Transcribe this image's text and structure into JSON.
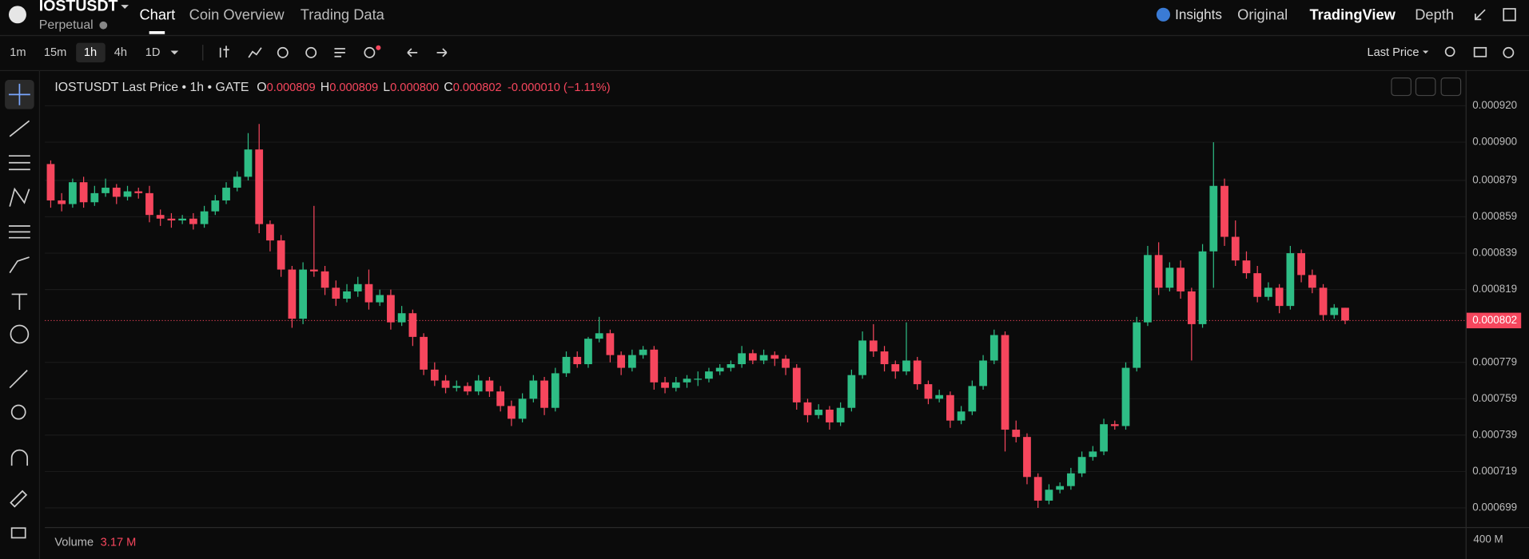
{
  "header": {
    "symbol": "IOSTUSDT",
    "market": "Perpetual",
    "tabs": [
      "Chart",
      "Coin Overview",
      "Trading Data"
    ],
    "views": [
      "Insights",
      "Original",
      "TradingView",
      "Depth"
    ]
  },
  "toolbar": {
    "intervals": [
      "1m",
      "15m",
      "1h",
      "4h",
      "1D"
    ],
    "price_type": "Last Price"
  },
  "chart_data": {
    "type": "candlestick",
    "title": "IOSTUSDT Last Price • 1h • GATE",
    "legend": {
      "labels": [
        "O",
        "H",
        "L",
        "C"
      ],
      "values": [
        "0.000809",
        "0.000809",
        "0.000800",
        "0.000802"
      ],
      "change": "-0.000010 (−1.11%)"
    },
    "last_price_label": "0.000802",
    "color_up": "#2ebd85",
    "color_down": "#f6465d",
    "grid": true,
    "ylim": [
      0.000689,
      0.000938
    ],
    "yticks": [
      {
        "value": 0.00092,
        "label": "0.000920"
      },
      {
        "value": 0.0009,
        "label": "0.000900"
      },
      {
        "value": 0.000879,
        "label": "0.000879"
      },
      {
        "value": 0.000859,
        "label": "0.000859"
      },
      {
        "value": 0.000839,
        "label": "0.000839"
      },
      {
        "value": 0.000819,
        "label": "0.000819"
      },
      {
        "value": 0.000779,
        "label": "0.000779"
      },
      {
        "value": 0.000759,
        "label": "0.000759"
      },
      {
        "value": 0.000739,
        "label": "0.000739"
      },
      {
        "value": 0.000719,
        "label": "0.000719"
      },
      {
        "value": 0.000699,
        "label": "0.000699"
      }
    ],
    "ohlc": [
      [
        0.000888,
        0.00089,
        0.000864,
        0.000868
      ],
      [
        0.000868,
        0.000872,
        0.000862,
        0.000866
      ],
      [
        0.000866,
        0.00088,
        0.000864,
        0.000878
      ],
      [
        0.000878,
        0.000881,
        0.000864,
        0.000867
      ],
      [
        0.000867,
        0.000876,
        0.000865,
        0.000872
      ],
      [
        0.000872,
        0.00088,
        0.00087,
        0.000875
      ],
      [
        0.000875,
        0.000877,
        0.000866,
        0.00087
      ],
      [
        0.00087,
        0.000876,
        0.000868,
        0.000873
      ],
      [
        0.000873,
        0.000875,
        0.000869,
        0.000872
      ],
      [
        0.000872,
        0.000876,
        0.000856,
        0.00086
      ],
      [
        0.00086,
        0.000863,
        0.000854,
        0.000858
      ],
      [
        0.000858,
        0.000861,
        0.000853,
        0.000857
      ],
      [
        0.000857,
        0.00086,
        0.000855,
        0.000858
      ],
      [
        0.000858,
        0.000861,
        0.000852,
        0.000855
      ],
      [
        0.000855,
        0.000865,
        0.000853,
        0.000862
      ],
      [
        0.000862,
        0.000871,
        0.00086,
        0.000868
      ],
      [
        0.000868,
        0.000878,
        0.000866,
        0.000875
      ],
      [
        0.000875,
        0.000884,
        0.000873,
        0.000881
      ],
      [
        0.000881,
        0.000905,
        0.000879,
        0.000896
      ],
      [
        0.000896,
        0.00091,
        0.00085,
        0.000855
      ],
      [
        0.000855,
        0.000857,
        0.00084,
        0.000846
      ],
      [
        0.000846,
        0.000849,
        0.000826,
        0.00083
      ],
      [
        0.00083,
        0.000832,
        0.000798,
        0.000803
      ],
      [
        0.000803,
        0.000834,
        0.0008,
        0.00083
      ],
      [
        0.00083,
        0.000865,
        0.000826,
        0.000829
      ],
      [
        0.000829,
        0.000832,
        0.000816,
        0.00082
      ],
      [
        0.00082,
        0.000824,
        0.00081,
        0.000814
      ],
      [
        0.000814,
        0.000822,
        0.000812,
        0.000818
      ],
      [
        0.000818,
        0.000826,
        0.000815,
        0.000822
      ],
      [
        0.000822,
        0.00083,
        0.000808,
        0.000812
      ],
      [
        0.000812,
        0.000819,
        0.00081,
        0.000816
      ],
      [
        0.000816,
        0.000819,
        0.000797,
        0.000801
      ],
      [
        0.000801,
        0.00081,
        0.000799,
        0.000806
      ],
      [
        0.000806,
        0.000808,
        0.000788,
        0.000793
      ],
      [
        0.000793,
        0.000795,
        0.000772,
        0.000775
      ],
      [
        0.000775,
        0.000779,
        0.000766,
        0.000769
      ],
      [
        0.000769,
        0.000772,
        0.000762,
        0.000765
      ],
      [
        0.000765,
        0.000769,
        0.000763,
        0.000766
      ],
      [
        0.000766,
        0.000768,
        0.000761,
        0.000763
      ],
      [
        0.000763,
        0.000772,
        0.000761,
        0.000769
      ],
      [
        0.000769,
        0.000771,
        0.00076,
        0.000763
      ],
      [
        0.000763,
        0.000766,
        0.000752,
        0.000755
      ],
      [
        0.000755,
        0.000758,
        0.000744,
        0.000748
      ],
      [
        0.000748,
        0.000762,
        0.000746,
        0.000759
      ],
      [
        0.000759,
        0.000772,
        0.000757,
        0.000769
      ],
      [
        0.000769,
        0.000771,
        0.00075,
        0.000754
      ],
      [
        0.000754,
        0.000776,
        0.000752,
        0.000773
      ],
      [
        0.000773,
        0.000785,
        0.000771,
        0.000782
      ],
      [
        0.000782,
        0.000785,
        0.000776,
        0.000778
      ],
      [
        0.000778,
        0.000793,
        0.000776,
        0.000792
      ],
      [
        0.000792,
        0.000804,
        0.00079,
        0.000795
      ],
      [
        0.000795,
        0.000797,
        0.000779,
        0.000783
      ],
      [
        0.000783,
        0.000785,
        0.000772,
        0.000776
      ],
      [
        0.000776,
        0.000786,
        0.000774,
        0.000783
      ],
      [
        0.000783,
        0.000788,
        0.000781,
        0.000786
      ],
      [
        0.000786,
        0.000788,
        0.000764,
        0.000768
      ],
      [
        0.000768,
        0.000771,
        0.000762,
        0.000765
      ],
      [
        0.000765,
        0.000771,
        0.000763,
        0.000768
      ],
      [
        0.000768,
        0.000772,
        0.000765,
        0.00077
      ],
      [
        0.00077,
        0.000774,
        0.000766,
        0.00077
      ],
      [
        0.00077,
        0.000776,
        0.000768,
        0.000774
      ],
      [
        0.000774,
        0.000778,
        0.000772,
        0.000776
      ],
      [
        0.000776,
        0.00078,
        0.000774,
        0.000778
      ],
      [
        0.000778,
        0.000788,
        0.000776,
        0.000784
      ],
      [
        0.000784,
        0.000786,
        0.000778,
        0.00078
      ],
      [
        0.00078,
        0.000786,
        0.000778,
        0.000783
      ],
      [
        0.000783,
        0.000785,
        0.000777,
        0.000781
      ],
      [
        0.000781,
        0.000783,
        0.000772,
        0.000776
      ],
      [
        0.000776,
        0.000778,
        0.000753,
        0.000757
      ],
      [
        0.000757,
        0.000759,
        0.000746,
        0.00075
      ],
      [
        0.00075,
        0.000756,
        0.000748,
        0.000753
      ],
      [
        0.000753,
        0.000755,
        0.000742,
        0.000746
      ],
      [
        0.000746,
        0.000757,
        0.000744,
        0.000754
      ],
      [
        0.000754,
        0.000775,
        0.000752,
        0.000772
      ],
      [
        0.000772,
        0.000796,
        0.00077,
        0.000791
      ],
      [
        0.000791,
        0.0008,
        0.000782,
        0.000785
      ],
      [
        0.000785,
        0.000788,
        0.000774,
        0.000778
      ],
      [
        0.000778,
        0.00078,
        0.00077,
        0.000774
      ],
      [
        0.000774,
        0.000801,
        0.000772,
        0.00078
      ],
      [
        0.00078,
        0.000782,
        0.000764,
        0.000767
      ],
      [
        0.000767,
        0.000769,
        0.000756,
        0.000759
      ],
      [
        0.000759,
        0.000764,
        0.000757,
        0.000761
      ],
      [
        0.000761,
        0.000763,
        0.000743,
        0.000747
      ],
      [
        0.000747,
        0.000755,
        0.000745,
        0.000752
      ],
      [
        0.000752,
        0.000769,
        0.00075,
        0.000766
      ],
      [
        0.000766,
        0.000783,
        0.000764,
        0.00078
      ],
      [
        0.00078,
        0.000797,
        0.000778,
        0.000794
      ],
      [
        0.000794,
        0.000796,
        0.00073,
        0.000742
      ],
      [
        0.000742,
        0.000747,
        0.000735,
        0.000738
      ],
      [
        0.000738,
        0.00074,
        0.000712,
        0.000716
      ],
      [
        0.000716,
        0.000718,
        0.000699,
        0.000703
      ],
      [
        0.000703,
        0.000712,
        0.000701,
        0.000709
      ],
      [
        0.000709,
        0.000713,
        0.000707,
        0.000711
      ],
      [
        0.000711,
        0.000721,
        0.000709,
        0.000718
      ],
      [
        0.000718,
        0.00073,
        0.000716,
        0.000727
      ],
      [
        0.000727,
        0.000733,
        0.000725,
        0.00073
      ],
      [
        0.00073,
        0.000748,
        0.000728,
        0.000745
      ],
      [
        0.000745,
        0.000747,
        0.000742,
        0.000744
      ],
      [
        0.000744,
        0.000779,
        0.000742,
        0.000776
      ],
      [
        0.000776,
        0.000804,
        0.000774,
        0.000801
      ],
      [
        0.000801,
        0.000843,
        0.000799,
        0.000838
      ],
      [
        0.000838,
        0.000845,
        0.000816,
        0.00082
      ],
      [
        0.00082,
        0.000834,
        0.000818,
        0.000831
      ],
      [
        0.000831,
        0.000835,
        0.000814,
        0.000818
      ],
      [
        0.000818,
        0.00082,
        0.00078,
        0.0008
      ],
      [
        0.0008,
        0.000844,
        0.000798,
        0.00084
      ],
      [
        0.00084,
        0.0009,
        0.00082,
        0.000876
      ],
      [
        0.000876,
        0.00088,
        0.000843,
        0.000848
      ],
      [
        0.000848,
        0.000857,
        0.000832,
        0.000835
      ],
      [
        0.000835,
        0.00084,
        0.000825,
        0.000828
      ],
      [
        0.000828,
        0.000832,
        0.000812,
        0.000815
      ],
      [
        0.000815,
        0.000823,
        0.000813,
        0.00082
      ],
      [
        0.00082,
        0.000822,
        0.000806,
        0.00081
      ],
      [
        0.00081,
        0.000843,
        0.000808,
        0.000839
      ],
      [
        0.000839,
        0.000841,
        0.000823,
        0.000827
      ],
      [
        0.000827,
        0.00083,
        0.000817,
        0.00082
      ],
      [
        0.00082,
        0.000822,
        0.000802,
        0.000805
      ],
      [
        0.000805,
        0.000811,
        0.000803,
        0.000809
      ],
      [
        0.000809,
        0.000809,
        0.0008,
        0.000802
      ]
    ],
    "volume": {
      "label": "Volume",
      "value": "3.17 M",
      "axis_label": "400 M"
    }
  }
}
